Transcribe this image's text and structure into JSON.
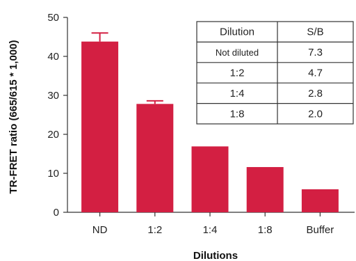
{
  "chart_data": {
    "type": "bar",
    "title": "",
    "xlabel": "Dilutions",
    "ylabel": "TR-FRET ratio (665/615 * 1,000)",
    "categories": [
      "ND",
      "1:2",
      "1:4",
      "1:8",
      "Buffer"
    ],
    "values": [
      43.8,
      27.8,
      16.9,
      11.6,
      5.9
    ],
    "error_upper": [
      2.2,
      0.8,
      0,
      0,
      0
    ],
    "ylim": [
      0,
      50
    ],
    "yticks": [
      0,
      10,
      20,
      30,
      40,
      50
    ],
    "bar_color": "#D31F42",
    "grid": false,
    "table": {
      "headers": [
        "Dilution",
        "S/B"
      ],
      "rows": [
        [
          "Not diluted",
          "7.3"
        ],
        [
          "1:2",
          "4.7"
        ],
        [
          "1:4",
          "2.8"
        ],
        [
          "1:8",
          "2.0"
        ]
      ]
    }
  }
}
